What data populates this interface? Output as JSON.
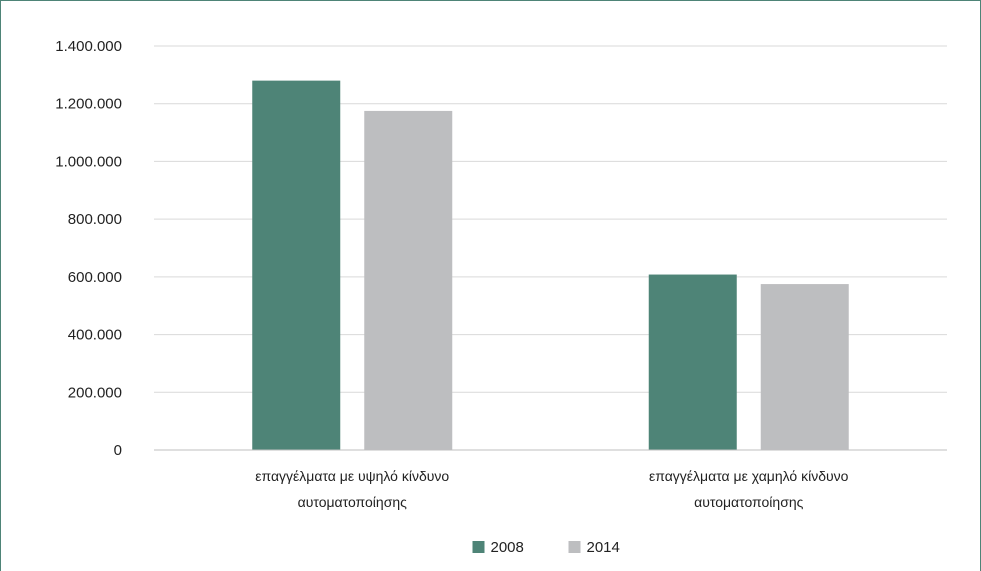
{
  "chart_data": {
    "type": "bar",
    "title": "",
    "xlabel": "",
    "ylabel": "",
    "categories": [
      [
        "επαγγέλματα με υψηλό κίνδυνο",
        "αυτοματοποίησης"
      ],
      [
        "επαγγέλματα με χαμηλό κίνδυνο",
        "αυτοματοποίησης"
      ]
    ],
    "series": [
      {
        "name": "2008",
        "color": "#4e8477",
        "values": [
          1280000,
          608000
        ]
      },
      {
        "name": "2014",
        "color": "#bdbec0",
        "values": [
          1175000,
          575000
        ]
      }
    ],
    "ylim": [
      0,
      1400000
    ],
    "yticks": [
      0,
      200000,
      400000,
      600000,
      800000,
      1000000,
      1200000,
      1400000
    ],
    "ytick_labels": [
      "0",
      "200.000",
      "400.000",
      "600.000",
      "800.000",
      "1.000.000",
      "1.200.000",
      "1.400.000"
    ],
    "grid": true,
    "legend_position": "bottom"
  }
}
